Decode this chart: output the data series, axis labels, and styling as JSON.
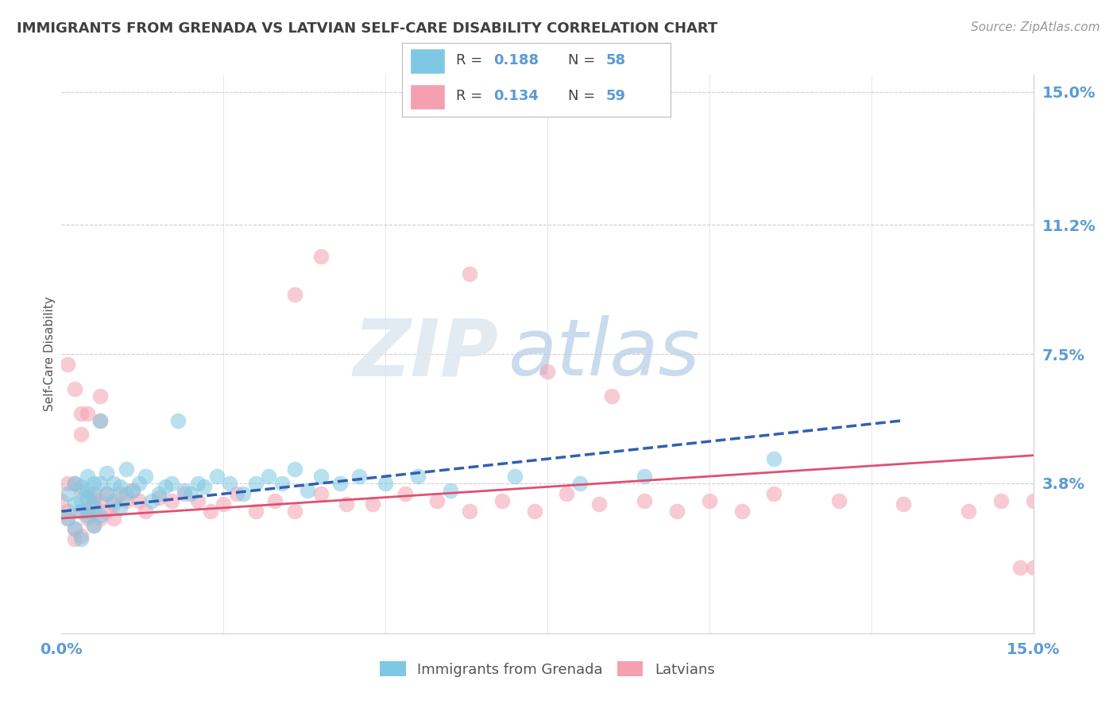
{
  "title": "IMMIGRANTS FROM GRENADA VS LATVIAN SELF-CARE DISABILITY CORRELATION CHART",
  "source": "Source: ZipAtlas.com",
  "ylabel": "Self-Care Disability",
  "xlim": [
    0.0,
    0.15
  ],
  "ylim": [
    -0.005,
    0.155
  ],
  "yticks": [
    0.038,
    0.075,
    0.112,
    0.15
  ],
  "ytick_labels": [
    "3.8%",
    "7.5%",
    "11.2%",
    "15.0%"
  ],
  "series1_label": "Immigrants from Grenada",
  "series2_label": "Latvians",
  "series1_color": "#7ec8e3",
  "series2_color": "#f4a0b0",
  "series1_R": 0.188,
  "series1_N": 58,
  "series2_R": 0.134,
  "series2_N": 59,
  "trend1_color": "#3060b0",
  "trend2_color": "#e05070",
  "background_color": "#ffffff",
  "grid_color": "#d0d0d0",
  "axis_label_color": "#5b9bd5",
  "title_color": "#404040",
  "watermark_zip": "ZIP",
  "watermark_atlas": "atlas"
}
